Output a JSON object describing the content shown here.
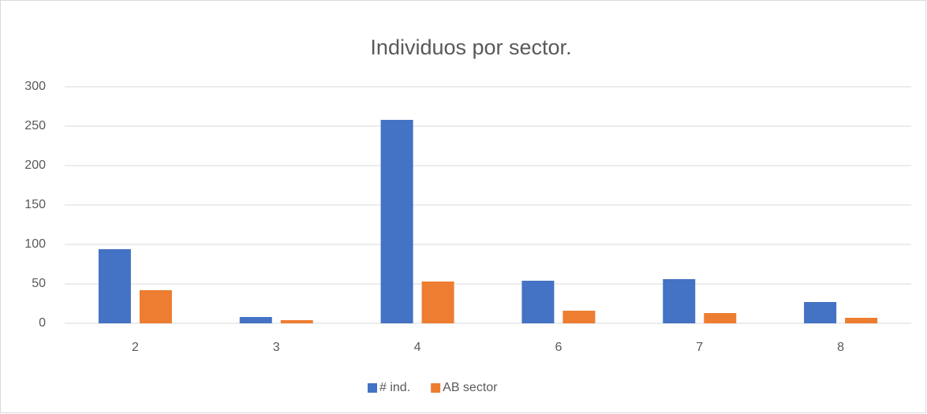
{
  "chart_data": {
    "type": "bar",
    "title": "Individuos por sector.",
    "categories": [
      "2",
      "3",
      "4",
      "6",
      "7",
      "8"
    ],
    "series": [
      {
        "name": "# ind.",
        "color": "#4472c4",
        "values": [
          94,
          8,
          258,
          54,
          56,
          27
        ]
      },
      {
        "name": "AB sector",
        "color": "#ed7d31",
        "values": [
          42,
          4,
          53,
          16,
          13,
          7
        ]
      }
    ],
    "ylim": [
      0,
      300
    ],
    "yticks": [
      0,
      50,
      100,
      150,
      200,
      250,
      300
    ],
    "grid": true,
    "legend": "bottom"
  }
}
